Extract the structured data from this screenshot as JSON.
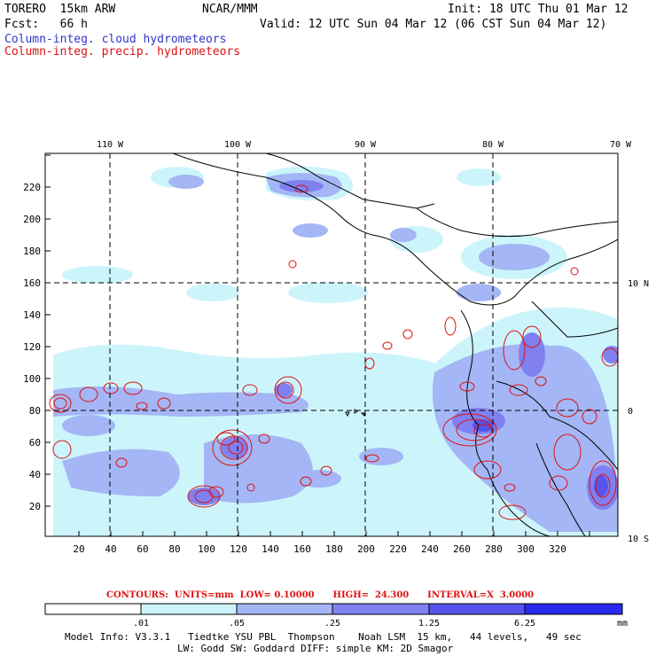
{
  "header": {
    "model": "TORERO  15km ARW",
    "org": "NCAR/MMM",
    "init": "Init: 18 UTC Thu 01 Mar 12",
    "fcst": "Fcst:   66 h",
    "valid": "Valid: 12 UTC Sun 04 Mar 12 (06 CST Sun 04 Mar 12)",
    "field1": "Column-integ. cloud hydrometeors",
    "field2": "Column-integ. precip. hydrometeors"
  },
  "map": {
    "lon_labels": [
      "110 W",
      "100 W",
      "90 W",
      "80 W",
      "70 W"
    ],
    "lat_labels": [
      "10 N",
      "0",
      "10 S"
    ],
    "x_ticks": [
      "20",
      "40",
      "60",
      "80",
      "100",
      "120",
      "140",
      "160",
      "180",
      "200",
      "220",
      "240",
      "260",
      "280",
      "300",
      "320"
    ],
    "y_ticks": [
      "20",
      "40",
      "60",
      "80",
      "100",
      "120",
      "140",
      "160",
      "180",
      "200",
      "220"
    ]
  },
  "contours": {
    "text": "CONTOURS:  UNITS=mm  LOW= 0.10000      HIGH=  24.300      INTERVAL=X  3.0000"
  },
  "colorbar": {
    "labels": [
      ".01",
      ".05",
      ".25",
      "1.25",
      "6.25"
    ],
    "units": "mm",
    "colors": [
      "#ffffff",
      "#ccf5fb",
      "#a4b6f5",
      "#8080f0",
      "#5555ee",
      "#2a2aee"
    ]
  },
  "footer": {
    "line1": "Model Info: V3.3.1   Tiedtke YSU PBL  Thompson    Noah LSM  15 km,   44 levels,   49 sec",
    "line2": "LW: Godd SW: Goddard DIFF: simple KM: 2D Smagor"
  }
}
